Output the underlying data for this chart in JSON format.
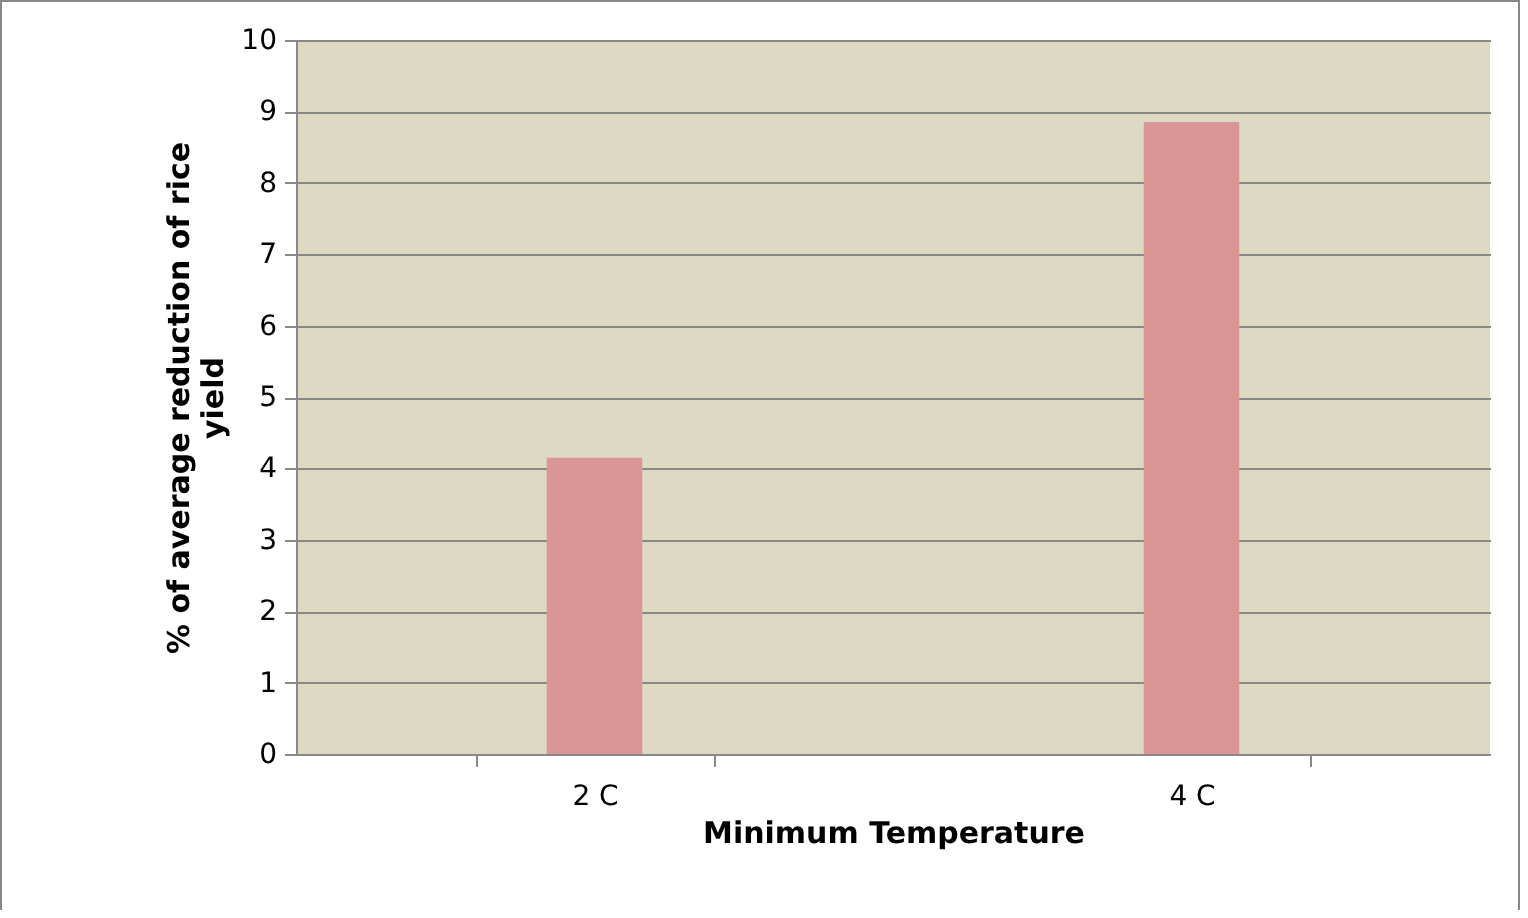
{
  "chart_data": {
    "type": "bar",
    "xlabel": "Minimum Temperature",
    "ylabel": "% of average reduction of rice yield",
    "categories": [
      "2 C",
      "4 C"
    ],
    "series": [
      {
        "color": "#d99694",
        "values": [
          4.15,
          8.85
        ]
      }
    ],
    "ylim": [
      0,
      10
    ],
    "yticks": [
      0,
      1,
      2,
      3,
      4,
      5,
      6,
      7,
      8,
      9,
      10
    ],
    "grid": "y",
    "legend": false
  }
}
